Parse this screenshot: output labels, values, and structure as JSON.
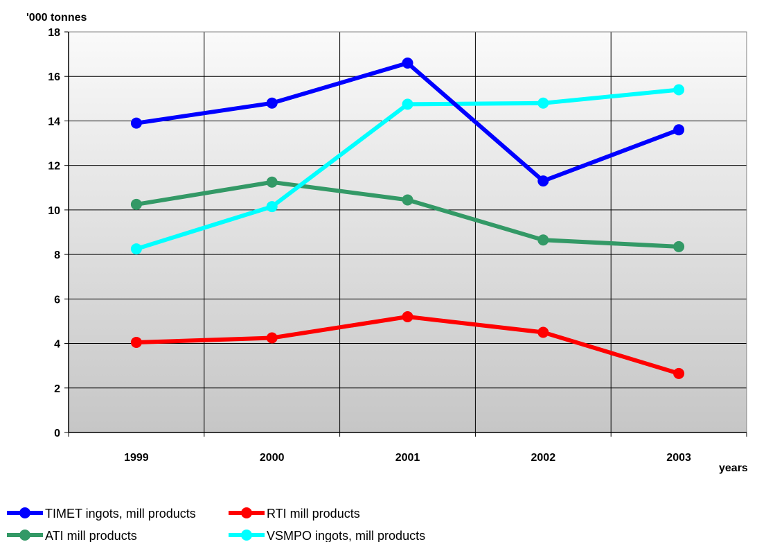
{
  "chart_data": {
    "type": "line",
    "title": "",
    "ylabel": "'000 tonnes",
    "xlabel": "years",
    "categories": [
      "1999",
      "2000",
      "2001",
      "2002",
      "2003"
    ],
    "ylim": [
      0,
      18
    ],
    "yticks": [
      "0",
      "2",
      "4",
      "6",
      "8",
      "10",
      "12",
      "14",
      "16",
      "18"
    ],
    "grid": true,
    "legend_position": "bottom-left",
    "series": [
      {
        "name": "TIMET ingots, mill products",
        "color": "#0000ff",
        "values": [
          13.9,
          14.8,
          16.6,
          11.3,
          13.6
        ]
      },
      {
        "name": "RTI mill products",
        "color": "#ff0000",
        "values": [
          4.05,
          4.25,
          5.2,
          4.5,
          2.65
        ]
      },
      {
        "name": "ATI mill products",
        "color": "#339966",
        "values": [
          10.25,
          11.25,
          10.45,
          8.65,
          8.35
        ]
      },
      {
        "name": "VSMPO ingots, mill products",
        "color": "#00ffff",
        "values": [
          8.25,
          10.15,
          14.75,
          14.8,
          15.4
        ]
      }
    ]
  }
}
